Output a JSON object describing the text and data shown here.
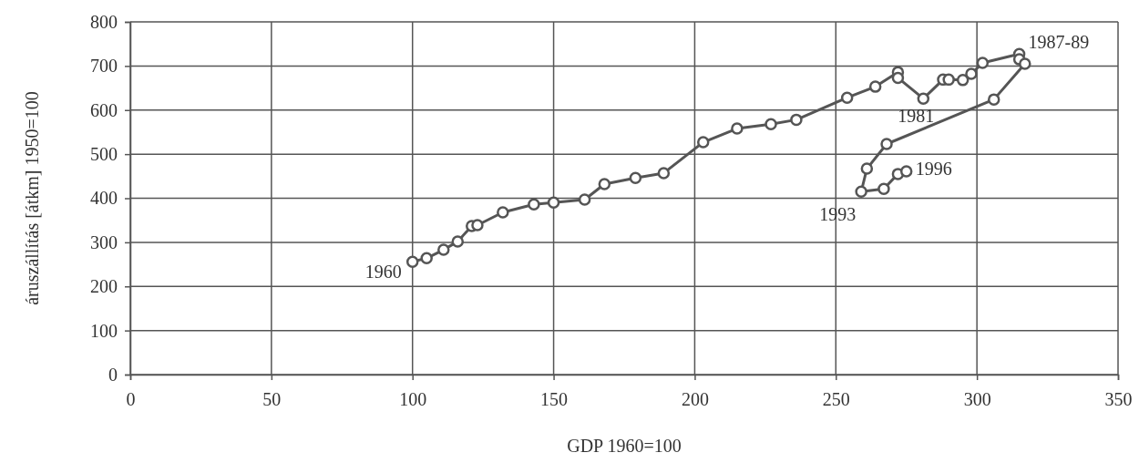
{
  "chart_data": {
    "type": "line",
    "xlabel": "GDP 1960=100",
    "ylabel": "áruszállítás [átkm] 1950=100",
    "xlim": [
      0,
      350
    ],
    "xticks": [
      0,
      50,
      100,
      150,
      200,
      250,
      300,
      350
    ],
    "ylim": [
      0,
      800
    ],
    "yticks": [
      0,
      100,
      200,
      300,
      400,
      500,
      600,
      700,
      800
    ],
    "grid": true,
    "marker": "circle",
    "line_style": "solid",
    "series": [
      {
        "color": "#555555",
        "x": [
          100,
          105,
          111,
          116,
          121,
          123,
          132,
          143,
          150,
          161,
          168,
          179,
          189,
          203,
          215,
          227,
          236,
          254,
          264,
          272,
          272,
          281,
          288,
          290,
          295,
          298,
          302,
          315,
          315,
          317,
          306,
          268,
          261,
          259,
          267,
          272,
          275
        ],
        "values": [
          256,
          264,
          283,
          302,
          337,
          339,
          368,
          386,
          390,
          397,
          432,
          446,
          457,
          527,
          558,
          568,
          578,
          628,
          653,
          686,
          673,
          626,
          669,
          669,
          668,
          682,
          707,
          727,
          715,
          705,
          624,
          523,
          467,
          415,
          421,
          455,
          461
        ]
      }
    ],
    "annotations": [
      {
        "text": "1960",
        "x": 100,
        "y": 256
      },
      {
        "text": "1981",
        "x": 281,
        "y": 626
      },
      {
        "text": "1987-89",
        "x": 315,
        "y": 727
      },
      {
        "text": "1996",
        "x": 275,
        "y": 461
      },
      {
        "text": "1993",
        "x": 259,
        "y": 415
      }
    ]
  }
}
